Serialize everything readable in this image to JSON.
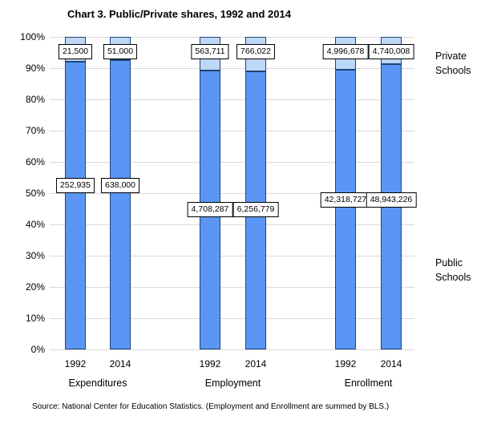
{
  "title": "Chart 3. Public/Private shares, 1992 and 2014",
  "source": "Source: National Center for Education Statistics. (Employment and Enrollment are summed by BLS.)",
  "colors": {
    "public_fill": "#5b96f5",
    "private_fill": "#bdd8f7",
    "bar_border": "#1f4576",
    "gridline": "#d9d9d9",
    "label_box_bg": "#ffffff",
    "label_box_border": "#000000"
  },
  "chart_data": {
    "type": "bar",
    "subtype": "stacked-100-percent",
    "title": "Chart 3. Public/Private shares, 1992 and 2014",
    "categories": [
      "Expenditures",
      "Employment",
      "Enrollment"
    ],
    "years": [
      "1992",
      "2014"
    ],
    "y_axis": {
      "min": 0,
      "max": 100,
      "tick_step": 10,
      "tick_suffix": "%",
      "grid": true
    },
    "series_labels": {
      "private": "Private Schools",
      "public": "Public Schools"
    },
    "bars": [
      {
        "group": "Expenditures",
        "year": "1992",
        "private_value": "21,500",
        "public_value": "252,935",
        "private_pct": 7.83,
        "public_pct": 92.17
      },
      {
        "group": "Expenditures",
        "year": "2014",
        "private_value": "51,000",
        "public_value": "638,000",
        "private_pct": 7.4,
        "public_pct": 92.6
      },
      {
        "group": "Employment",
        "year": "1992",
        "private_value": "563,711",
        "public_value": "4,708,287",
        "private_pct": 10.69,
        "public_pct": 89.31
      },
      {
        "group": "Employment",
        "year": "2014",
        "private_value": "766,022",
        "public_value": "6,256,779",
        "private_pct": 10.91,
        "public_pct": 89.09
      },
      {
        "group": "Enrollment",
        "year": "1992",
        "private_value": "4,996,678",
        "public_value": "42,318,727",
        "private_pct": 10.56,
        "public_pct": 89.44
      },
      {
        "group": "Enrollment",
        "year": "2014",
        "private_value": "4,740,008",
        "public_value": "48,943,226",
        "private_pct": 8.83,
        "public_pct": 91.17
      }
    ]
  }
}
